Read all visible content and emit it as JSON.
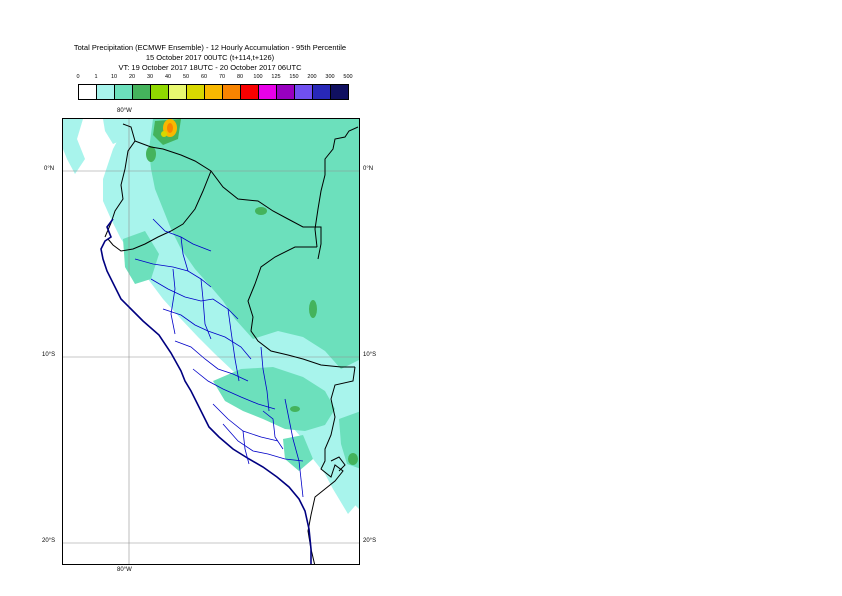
{
  "header": {
    "line1": "Total Precipitation (ECMWF Ensemble) - 12 Hourly Accumulation - 95th Percentile",
    "line2": "15 October 2017 00UTC (t+114,t+126)",
    "line3": "VT: 19 October 2017 18UTC - 20 October 2017 06UTC"
  },
  "legend": {
    "ticks": [
      "0",
      "1",
      "10",
      "20",
      "30",
      "40",
      "50",
      "60",
      "70",
      "80",
      "100",
      "125",
      "150",
      "200",
      "300",
      "500"
    ],
    "colors": [
      "#ffffff",
      "#a8f4ec",
      "#6ce0bc",
      "#44b35c",
      "#90d800",
      "#e8f870",
      "#d8d800",
      "#f8b800",
      "#f88400",
      "#f80000",
      "#e800e8",
      "#9800c0",
      "#7050f0",
      "#2828b8",
      "#101060"
    ]
  },
  "axes": {
    "top_lon": "80°W",
    "bottom_lon": "80°W",
    "lat_left": [
      "0°N",
      "10°S",
      "20°S"
    ],
    "lat_right": [
      "0°N",
      "10°S",
      "20°S"
    ]
  },
  "colors": {
    "light_precip": "#a8f4ec",
    "moderate_precip": "#6ce0bc",
    "heavy_precip": "#44b35c",
    "very_heavy_precip": "#90d800",
    "country_border": "#000000",
    "region_border": "#0000c8",
    "coastline": "#000080"
  }
}
